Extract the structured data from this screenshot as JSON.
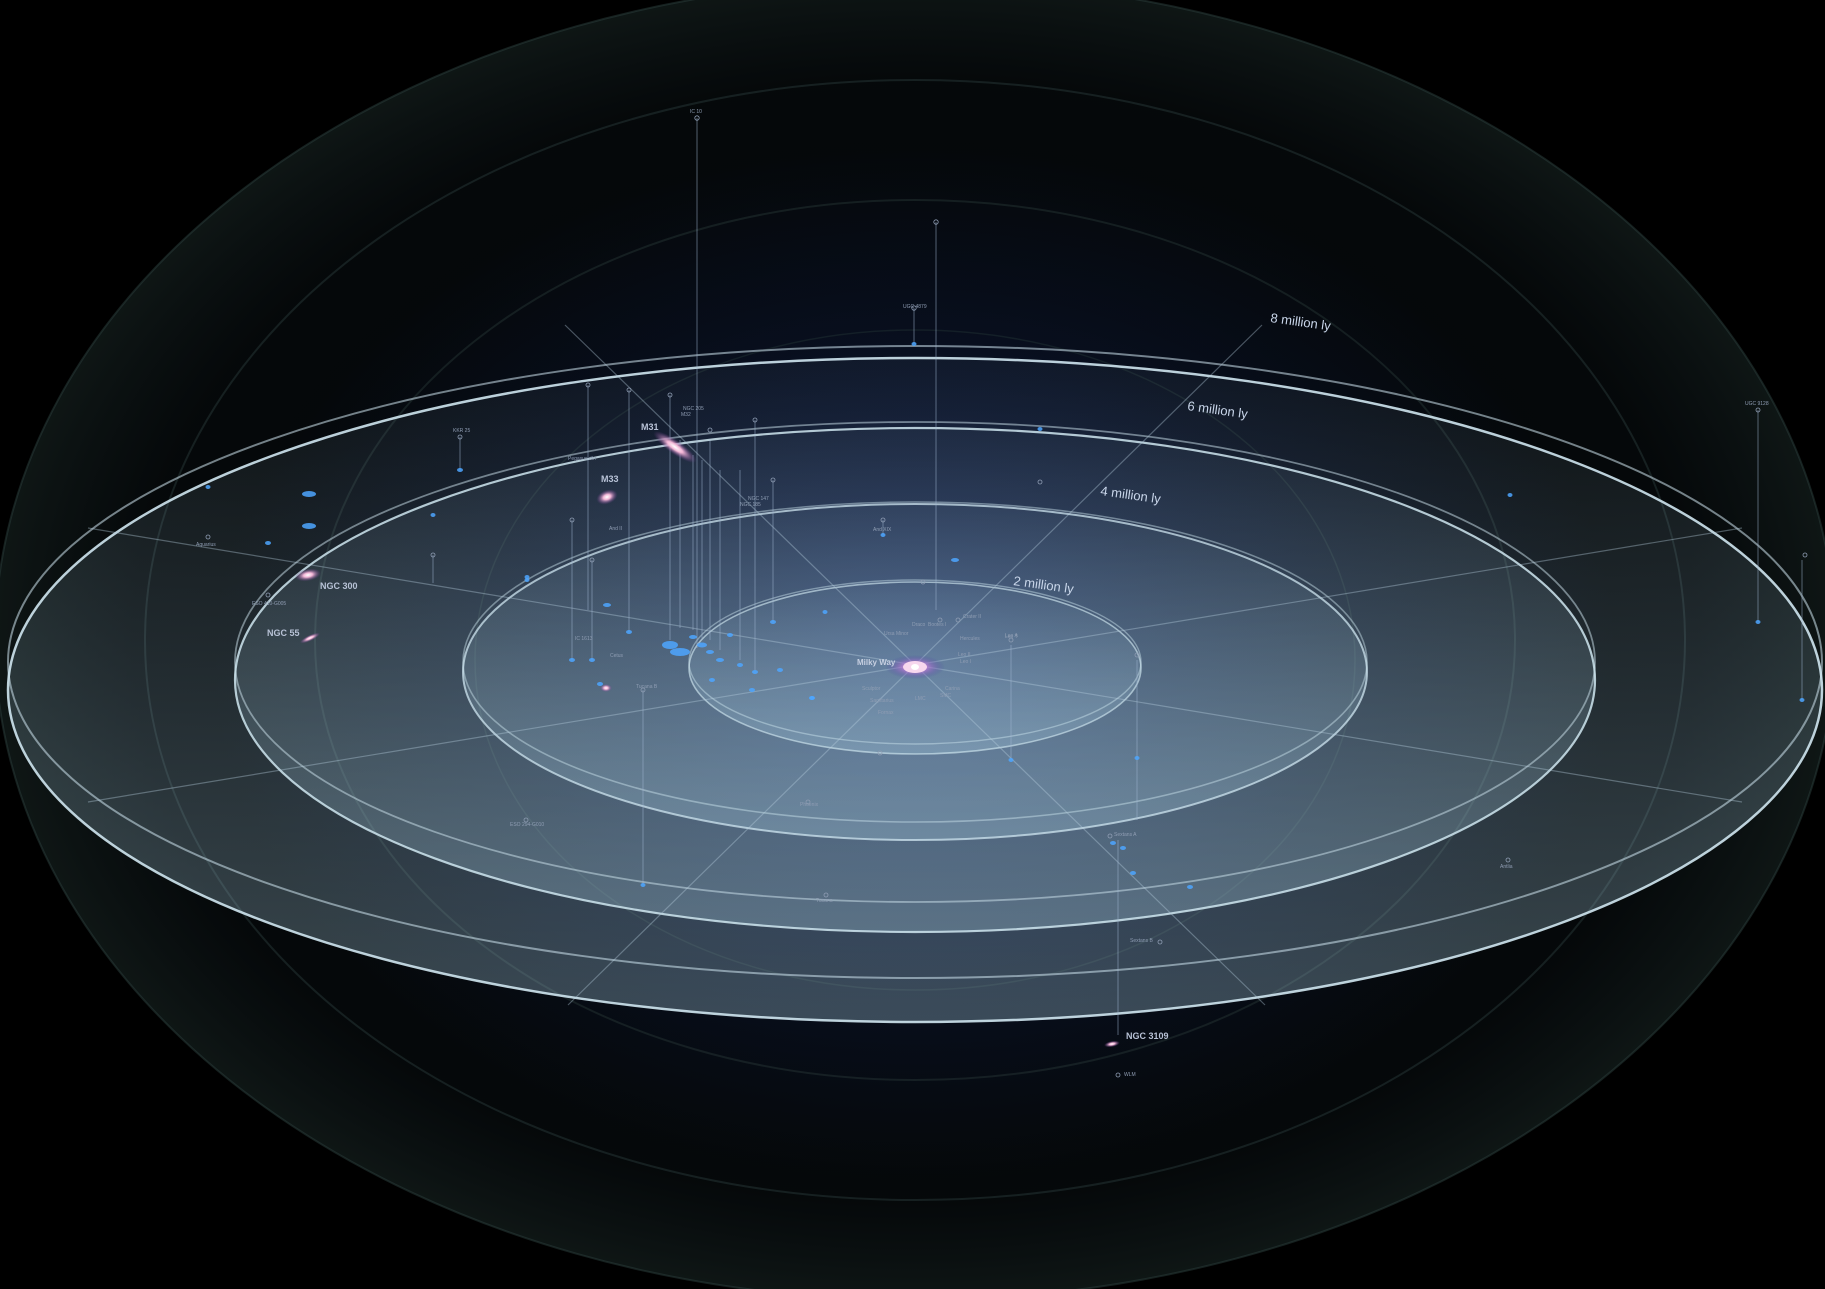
{
  "rings": [
    {
      "label": "2 million ly"
    },
    {
      "label": "4 million ly"
    },
    {
      "label": "6 million ly"
    },
    {
      "label": "8 million ly"
    }
  ],
  "center": {
    "label": "Milky Way"
  },
  "major_galaxies": [
    {
      "label": "M31"
    },
    {
      "label": "M33"
    },
    {
      "label": "NGC 300"
    },
    {
      "label": "NGC 55"
    },
    {
      "label": "NGC 3109"
    }
  ],
  "minor_labels": [
    "IC 10",
    "IC 1613",
    "WLM",
    "Phoenix",
    "Tucana",
    "Leo A",
    "Sextans A",
    "Sextans B",
    "Antlia",
    "Leo I",
    "Leo II",
    "Draco",
    "Ursa Minor",
    "Sculptor",
    "Fornax",
    "Carina",
    "Sagittarius",
    "LMC",
    "SMC",
    "Pegasus dIrr",
    "Cetus",
    "Aquarius",
    "And II",
    "And XIX",
    "NGC 147",
    "NGC 185",
    "NGC 205",
    "M32",
    "UGC 4879",
    "KKR 25",
    "ESO 410-G005",
    "ESO 294-G010",
    "UGC 9128",
    "Tucana B",
    "Leo T",
    "Crater II",
    "Bootes I",
    "Hercules"
  ],
  "colors": {
    "background": "#000000",
    "ring_edge": "#cfe6f0",
    "ring_fill": "#9fc4da",
    "dwarf_marker": "#4da6ff",
    "label": "#8f9db3"
  }
}
